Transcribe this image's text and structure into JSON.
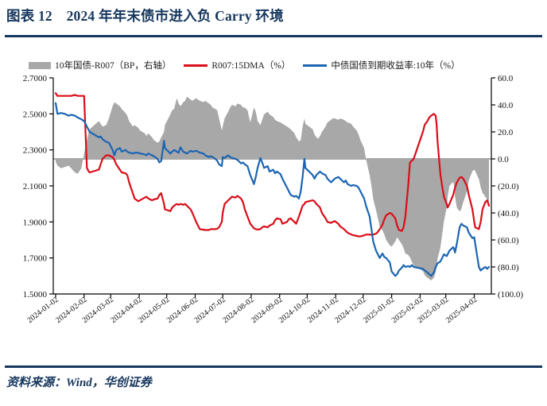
{
  "page": {
    "title": "图表 12　2024 年年末债市进入负 Carry 环境",
    "source": "资料来源：Wind，华创证券"
  },
  "colors": {
    "accent_navy": "#17375e",
    "spread_area": "#a8a8a8",
    "r007_line": "#da0d18",
    "yield_line": "#1b65b2",
    "negative_tick": "#e00000",
    "axis_line": "#000000"
  },
  "legend": [
    {
      "type": "area",
      "label": "10年国债-R007（BP，右轴）",
      "color": "#a8a8a8"
    },
    {
      "type": "line",
      "label": "R007:15DMA（%）",
      "color": "#da0d18"
    },
    {
      "type": "line",
      "label": "中债国债到期收益率:10年（%）",
      "color": "#1b65b2"
    }
  ],
  "chart_data": {
    "type": "mixed",
    "title": "2024 年年末债市进入负 Carry 环境",
    "xlabel": "",
    "ylabel_left": "%",
    "ylabel_right": "BP",
    "grid": false,
    "legend_position": "top",
    "left_axis": {
      "min": 1.5,
      "max": 2.7,
      "tick_values": [
        2.7,
        2.5,
        2.3,
        2.1,
        1.9,
        1.7,
        1.5
      ],
      "tick_labels": [
        "2.7000",
        "2.5000",
        "2.3000",
        "2.1000",
        "1.9000",
        "1.7000",
        "1.5000"
      ]
    },
    "right_axis": {
      "min": -100,
      "max": 60,
      "tick_values": [
        60,
        40,
        20,
        0,
        -20,
        -40,
        -60,
        -80,
        -100
      ],
      "tick_labels": [
        "60.0",
        "40.0",
        "20.0",
        "0.0",
        "(20.0)",
        "(40.0)",
        "(60.0)",
        "(80.0)",
        "(100.0)"
      ]
    },
    "x_ticks": [
      "2024-01-02",
      "2024-02-02",
      "2024-03-02",
      "2024-04-02",
      "2024-05-02",
      "2024-06-02",
      "2024-07-02",
      "2024-08-02",
      "2024-09-02",
      "2024-10-02",
      "2024-11-02",
      "2024-12-02",
      "2025-01-02",
      "2025-02-02",
      "2025-03-02",
      "2025-04-02"
    ],
    "series": [
      {
        "name": "10年国债-R007（BP，右轴）",
        "type": "area",
        "axis": "right",
        "column": 1,
        "color": "#a8a8a8"
      },
      {
        "name": "R007:15DMA（%）",
        "type": "line",
        "axis": "left",
        "column": 2,
        "color": "#da0d18"
      },
      {
        "name": "中债国债到期收益率:10年（%）",
        "type": "line",
        "axis": "left",
        "column": 3,
        "color": "#1b65b2"
      }
    ],
    "row_columns": [
      "date",
      "spread_bp",
      "r007_15dma_pct",
      "cgb10y_yield_pct"
    ],
    "rows": [
      [
        "2024-01-02",
        -2,
        2.615,
        2.56
      ],
      [
        "2024-01-04",
        -5,
        2.6,
        2.5
      ],
      [
        "2024-01-08",
        -7,
        2.6,
        2.505
      ],
      [
        "2024-01-12",
        -6,
        2.6,
        2.5
      ],
      [
        "2024-01-16",
        -5,
        2.6,
        2.49
      ],
      [
        "2024-01-19",
        -7,
        2.6,
        2.495
      ],
      [
        "2024-01-23",
        -10,
        2.605,
        2.49
      ],
      [
        "2024-01-26",
        -11,
        2.6,
        2.48
      ],
      [
        "2024-01-30",
        -7,
        2.6,
        2.47
      ],
      [
        "2024-02-02",
        4,
        2.6,
        2.46
      ],
      [
        "2024-02-05",
        14,
        2.2,
        2.43
      ],
      [
        "2024-02-07",
        20,
        2.18,
        2.41
      ],
      [
        "2024-02-08",
        22,
        2.175,
        2.4
      ],
      [
        "2024-02-18",
        28,
        2.19,
        2.37
      ],
      [
        "2024-02-20",
        26,
        2.22,
        2.375
      ],
      [
        "2024-02-22",
        24,
        2.25,
        2.36
      ],
      [
        "2024-02-26",
        25,
        2.27,
        2.345
      ],
      [
        "2024-02-29",
        30,
        2.27,
        2.34
      ],
      [
        "2024-03-04",
        39,
        2.26,
        2.3
      ],
      [
        "2024-03-06",
        42,
        2.245,
        2.27
      ],
      [
        "2024-03-08",
        41,
        2.22,
        2.3
      ],
      [
        "2024-03-12",
        39,
        2.19,
        2.31
      ],
      [
        "2024-03-14",
        37,
        2.175,
        2.29
      ],
      [
        "2024-03-18",
        34,
        2.17,
        2.3
      ],
      [
        "2024-03-20",
        32,
        2.16,
        2.29
      ],
      [
        "2024-03-22",
        28,
        2.12,
        2.285
      ],
      [
        "2024-03-26",
        24,
        2.06,
        2.28
      ],
      [
        "2024-03-28",
        25,
        2.03,
        2.285
      ],
      [
        "2024-04-01",
        23,
        2.015,
        2.284
      ],
      [
        "2024-04-03",
        21,
        2.02,
        2.28
      ],
      [
        "2024-04-08",
        19,
        2.035,
        2.275
      ],
      [
        "2024-04-10",
        17,
        2.04,
        2.27
      ],
      [
        "2024-04-12",
        19,
        2.03,
        2.28
      ],
      [
        "2024-04-16",
        16,
        2.02,
        2.27
      ],
      [
        "2024-04-18",
        14,
        2.025,
        2.265
      ],
      [
        "2024-04-22",
        12,
        2.03,
        2.25
      ],
      [
        "2024-04-24",
        13,
        2.05,
        2.23
      ],
      [
        "2024-04-26",
        16,
        2.06,
        2.24
      ],
      [
        "2024-04-29",
        20,
        2.0,
        2.35
      ],
      [
        "2024-04-30",
        25,
        1.97,
        2.31
      ],
      [
        "2024-05-06",
        33,
        1.96,
        2.28
      ],
      [
        "2024-05-08",
        36,
        1.98,
        2.29
      ],
      [
        "2024-05-10",
        37,
        1.99,
        2.3
      ],
      [
        "2024-05-13",
        45,
        2.0,
        2.29
      ],
      [
        "2024-05-15",
        41,
        1.995,
        2.285
      ],
      [
        "2024-05-17",
        39,
        2.0,
        2.315
      ],
      [
        "2024-05-20",
        42,
        1.995,
        2.29
      ],
      [
        "2024-05-22",
        43,
        2.0,
        2.285
      ],
      [
        "2024-05-24",
        46,
        1.99,
        2.28
      ],
      [
        "2024-05-28",
        44,
        1.97,
        2.295
      ],
      [
        "2024-05-30",
        43,
        1.95,
        2.29
      ],
      [
        "2024-06-03",
        45,
        1.9,
        2.295
      ],
      [
        "2024-06-05",
        44,
        1.88,
        2.29
      ],
      [
        "2024-06-07",
        43,
        1.86,
        2.285
      ],
      [
        "2024-06-11",
        42,
        1.857,
        2.28
      ],
      [
        "2024-06-13",
        43,
        1.855,
        2.27
      ],
      [
        "2024-06-17",
        41,
        1.855,
        2.26
      ],
      [
        "2024-06-19",
        40,
        1.86,
        2.265
      ],
      [
        "2024-06-21",
        38,
        1.86,
        2.26
      ],
      [
        "2024-06-24",
        37,
        1.86,
        2.25
      ],
      [
        "2024-06-26",
        36,
        1.862,
        2.24
      ],
      [
        "2024-06-28",
        30,
        1.87,
        2.22
      ],
      [
        "2024-07-01",
        21,
        1.9,
        2.21
      ],
      [
        "2024-07-02",
        24,
        1.95,
        2.26
      ],
      [
        "2024-07-04",
        30,
        2.0,
        2.255
      ],
      [
        "2024-07-08",
        35,
        2.02,
        2.27
      ],
      [
        "2024-07-10",
        38,
        2.03,
        2.26
      ],
      [
        "2024-07-12",
        40,
        2.04,
        2.255
      ],
      [
        "2024-07-16",
        39,
        2.035,
        2.25
      ],
      [
        "2024-07-18",
        41,
        2.045,
        2.245
      ],
      [
        "2024-07-22",
        40,
        2.03,
        2.225
      ],
      [
        "2024-07-24",
        38,
        2.01,
        2.23
      ],
      [
        "2024-07-26",
        38,
        1.97,
        2.22
      ],
      [
        "2024-07-29",
        36,
        1.93,
        2.21
      ],
      [
        "2024-08-01",
        27,
        1.89,
        2.16
      ],
      [
        "2024-08-05",
        38,
        1.865,
        2.11
      ],
      [
        "2024-08-07",
        35,
        1.86,
        2.15
      ],
      [
        "2024-08-09",
        28,
        1.858,
        2.2
      ],
      [
        "2024-08-12",
        25,
        1.86,
        2.255
      ],
      [
        "2024-08-14",
        29,
        1.87,
        2.23
      ],
      [
        "2024-08-16",
        33,
        1.875,
        2.2
      ],
      [
        "2024-08-20",
        35,
        1.87,
        2.21
      ],
      [
        "2024-08-22",
        33,
        1.88,
        2.18
      ],
      [
        "2024-08-26",
        31,
        1.89,
        2.19
      ],
      [
        "2024-08-28",
        29,
        1.91,
        2.17
      ],
      [
        "2024-08-30",
        28,
        1.92,
        2.18
      ],
      [
        "2024-09-03",
        27,
        1.915,
        2.165
      ],
      [
        "2024-09-05",
        26,
        1.89,
        2.14
      ],
      [
        "2024-09-10",
        24,
        1.9,
        2.09
      ],
      [
        "2024-09-12",
        23,
        1.915,
        2.07
      ],
      [
        "2024-09-14",
        22,
        1.92,
        2.05
      ],
      [
        "2024-09-18",
        19,
        1.9,
        2.04
      ],
      [
        "2024-09-20",
        16,
        1.89,
        2.045
      ],
      [
        "2024-09-23",
        13,
        1.93,
        2.03
      ],
      [
        "2024-09-25",
        14,
        1.96,
        2.07
      ],
      [
        "2024-09-27",
        24,
        1.99,
        2.15
      ],
      [
        "2024-09-29",
        30,
        2.0,
        2.25
      ],
      [
        "2024-09-30",
        26,
        2.01,
        2.2
      ],
      [
        "2024-10-08",
        22,
        2.02,
        2.16
      ],
      [
        "2024-10-10",
        18,
        2.015,
        2.14
      ],
      [
        "2024-10-12",
        16,
        2.0,
        2.16
      ],
      [
        "2024-10-14",
        15,
        1.99,
        2.17
      ],
      [
        "2024-10-16",
        17,
        1.98,
        2.18
      ],
      [
        "2024-10-18",
        20,
        1.95,
        2.17
      ],
      [
        "2024-10-22",
        24,
        1.92,
        2.16
      ],
      [
        "2024-10-24",
        27,
        1.9,
        2.14
      ],
      [
        "2024-10-28",
        29,
        1.895,
        2.12
      ],
      [
        "2024-10-30",
        30,
        1.9,
        2.13
      ],
      [
        "2024-11-01",
        30,
        1.905,
        2.14
      ],
      [
        "2024-11-05",
        29,
        1.89,
        2.15
      ],
      [
        "2024-11-07",
        30,
        1.875,
        2.14
      ],
      [
        "2024-11-11",
        29,
        1.86,
        2.12
      ],
      [
        "2024-11-13",
        28,
        1.85,
        2.13
      ],
      [
        "2024-11-15",
        27,
        1.84,
        2.11
      ],
      [
        "2024-11-19",
        26,
        1.83,
        2.1
      ],
      [
        "2024-11-21",
        24,
        1.827,
        2.105
      ],
      [
        "2024-11-25",
        21,
        1.822,
        2.1
      ],
      [
        "2024-11-27",
        18,
        1.82,
        2.09
      ],
      [
        "2024-11-29",
        14,
        1.82,
        2.07
      ],
      [
        "2024-12-03",
        8,
        1.825,
        2.03
      ],
      [
        "2024-12-05",
        0,
        1.83,
        1.99
      ],
      [
        "2024-12-09",
        -12,
        1.83,
        1.93
      ],
      [
        "2024-12-11",
        -20,
        1.828,
        1.86
      ],
      [
        "2024-12-13",
        -30,
        1.83,
        1.79
      ],
      [
        "2024-12-16",
        -38,
        1.835,
        1.74
      ],
      [
        "2024-12-18",
        -44,
        1.845,
        1.72
      ],
      [
        "2024-12-20",
        -50,
        1.86,
        1.7
      ],
      [
        "2024-12-23",
        -53,
        1.885,
        1.725
      ],
      [
        "2024-12-25",
        -56,
        1.915,
        1.705
      ],
      [
        "2024-12-27",
        -60,
        1.937,
        1.7
      ],
      [
        "2024-12-31",
        -64,
        1.95,
        1.675
      ],
      [
        "2025-01-02",
        -65,
        1.945,
        1.625
      ],
      [
        "2025-01-06",
        -61,
        1.92,
        1.6
      ],
      [
        "2025-01-08",
        -58,
        1.88,
        1.61
      ],
      [
        "2025-01-10",
        -60,
        1.855,
        1.63
      ],
      [
        "2025-01-13",
        -63,
        1.85,
        1.645
      ],
      [
        "2025-01-15",
        -66,
        1.87,
        1.66
      ],
      [
        "2025-01-17",
        -70,
        1.93,
        1.65
      ],
      [
        "2025-01-20",
        -71,
        2.1,
        1.655
      ],
      [
        "2025-01-22",
        -73,
        2.23,
        1.65
      ],
      [
        "2025-01-24",
        -76,
        2.24,
        1.66
      ],
      [
        "2025-01-26",
        -79,
        2.25,
        1.65
      ],
      [
        "2025-02-05",
        -83,
        2.4,
        1.64
      ],
      [
        "2025-02-07",
        -86,
        2.44,
        1.63
      ],
      [
        "2025-02-10",
        -88,
        2.46,
        1.62
      ],
      [
        "2025-02-12",
        -89,
        2.48,
        1.61
      ],
      [
        "2025-02-14",
        -90,
        2.49,
        1.6
      ],
      [
        "2025-02-17",
        -88,
        2.5,
        1.62
      ],
      [
        "2025-02-19",
        -84,
        2.49,
        1.65
      ],
      [
        "2025-02-20",
        -80,
        2.44,
        1.66
      ],
      [
        "2025-02-21",
        -74,
        2.35,
        1.67
      ],
      [
        "2025-02-24",
        -66,
        2.17,
        1.68
      ],
      [
        "2025-02-26",
        -56,
        2.1,
        1.7
      ],
      [
        "2025-02-28",
        -46,
        2.04,
        1.72
      ],
      [
        "2025-03-03",
        -36,
        2.0,
        1.71
      ],
      [
        "2025-03-04",
        -28,
        1.98,
        1.72
      ],
      [
        "2025-03-06",
        -20,
        2.0,
        1.74
      ],
      [
        "2025-03-10",
        -17,
        2.05,
        1.76
      ],
      [
        "2025-03-11",
        -20,
        2.07,
        1.75
      ],
      [
        "2025-03-12",
        -28,
        2.09,
        1.73
      ],
      [
        "2025-03-14",
        -36,
        2.12,
        1.78
      ],
      [
        "2025-03-17",
        -39,
        2.145,
        1.87
      ],
      [
        "2025-03-19",
        -37,
        2.15,
        1.89
      ],
      [
        "2025-03-21",
        -32,
        2.14,
        1.88
      ],
      [
        "2025-03-25",
        -24,
        2.1,
        1.87
      ],
      [
        "2025-03-27",
        -16,
        2.05,
        1.84
      ],
      [
        "2025-03-31",
        -9,
        1.97,
        1.81
      ],
      [
        "2025-04-02",
        -8,
        1.9,
        1.815
      ],
      [
        "2025-04-03",
        -9,
        1.87,
        1.78
      ],
      [
        "2025-04-07",
        -15,
        1.86,
        1.65
      ],
      [
        "2025-04-09",
        -21,
        1.9,
        1.63
      ],
      [
        "2025-04-11",
        -25,
        1.97,
        1.64
      ],
      [
        "2025-04-14",
        -28,
        2.01,
        1.65
      ],
      [
        "2025-04-16",
        -30,
        2.02,
        1.64
      ],
      [
        "2025-04-18",
        -32,
        1.99,
        1.65
      ]
    ],
    "plot": {
      "x0": 67,
      "x1": 618,
      "y0": 98,
      "y1": 370,
      "x_first": 70,
      "x_last": 615
    }
  }
}
